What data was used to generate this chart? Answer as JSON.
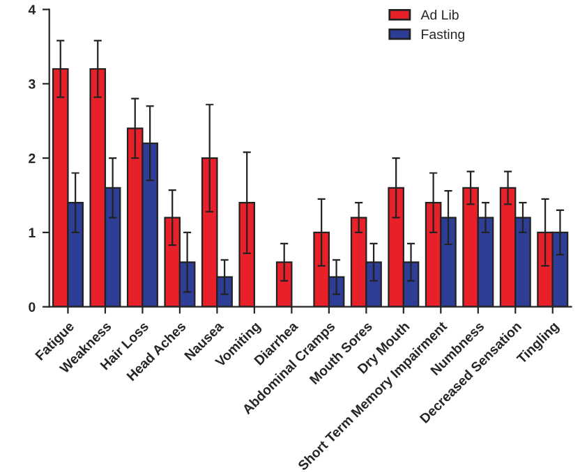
{
  "chart_data": {
    "type": "bar",
    "categories": [
      "Fatigue",
      "Weakness",
      "Hair Loss",
      "Head Aches",
      "Nausea",
      "Vomiting",
      "Diarrhea",
      "Abdominal Cramps",
      "Mouth Sores",
      "Dry Mouth",
      "Short Term Memory Impairment",
      "Numbness",
      "Decreased Sensation",
      "Tingling"
    ],
    "series": [
      {
        "name": "Ad Lib",
        "color": "#e8202a",
        "values": [
          3.2,
          3.2,
          2.4,
          1.2,
          2.0,
          1.4,
          0.6,
          1.0,
          1.2,
          1.6,
          1.4,
          1.6,
          1.6,
          1.0
        ],
        "errors": [
          0.38,
          0.38,
          0.4,
          0.37,
          0.72,
          0.68,
          0.25,
          0.45,
          0.2,
          0.4,
          0.4,
          0.22,
          0.22,
          0.45
        ]
      },
      {
        "name": "Fasting",
        "color": "#2e3d96",
        "values": [
          1.4,
          1.6,
          2.2,
          0.6,
          0.4,
          0,
          0,
          0.4,
          0.6,
          0.6,
          1.2,
          1.2,
          1.2,
          1.0
        ],
        "errors": [
          0.4,
          0.4,
          0.5,
          0.4,
          0.23,
          null,
          null,
          0.23,
          0.25,
          0.25,
          0.36,
          0.2,
          0.2,
          0.3
        ]
      }
    ],
    "ylim": [
      0,
      4
    ],
    "yticks": [
      0,
      1,
      2,
      3,
      4
    ],
    "grid": false,
    "legend": "top right"
  }
}
